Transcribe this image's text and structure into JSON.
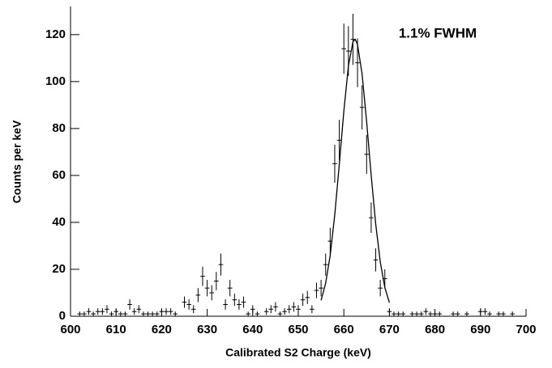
{
  "chart_data": {
    "type": "errorbar",
    "annotation": "1.1% FWHM",
    "x_label": "Calibrated S2 Charge (keV)",
    "y_label": "Counts per keV",
    "color": "#000000",
    "x": [
      602,
      603,
      604,
      605,
      606,
      607,
      608,
      609,
      610,
      611,
      612,
      613,
      614,
      615,
      616,
      617,
      618,
      619,
      620,
      621,
      622,
      623,
      625,
      626,
      627,
      628,
      629,
      630,
      631,
      632,
      633,
      634,
      635,
      636,
      637,
      638,
      639,
      640,
      641,
      643,
      644,
      645,
      646,
      647,
      648,
      649,
      650,
      651,
      652,
      653,
      654,
      655,
      656,
      657,
      658,
      659,
      660,
      661,
      662,
      663,
      664,
      665,
      666,
      667,
      668,
      669,
      670,
      671,
      672,
      673,
      675,
      676,
      677,
      678,
      679,
      680,
      681,
      684,
      685,
      687,
      690,
      691,
      692,
      694,
      695,
      697
    ],
    "values": [
      1,
      1,
      2,
      1,
      2,
      2,
      3,
      1,
      2,
      1,
      1,
      5,
      2,
      3,
      1,
      1,
      1,
      1,
      2,
      2,
      2,
      1,
      6,
      5,
      3,
      9,
      17,
      12,
      10,
      15,
      22,
      5,
      12,
      7,
      5,
      6,
      1,
      3,
      1,
      2,
      3,
      4,
      1,
      2,
      3,
      4,
      3,
      7,
      8,
      3,
      11,
      12,
      22,
      32,
      65,
      75,
      114,
      113,
      118,
      108,
      89,
      69,
      42,
      24,
      12,
      16,
      2,
      1,
      1,
      1,
      1,
      1,
      1,
      2,
      1,
      1,
      1,
      1,
      1,
      1,
      2,
      2,
      1,
      1,
      1,
      1
    ],
    "errors": [
      1,
      1,
      1.4,
      1,
      1.4,
      1.4,
      1.7,
      1,
      1.4,
      1,
      1,
      2.2,
      1.4,
      1.7,
      1,
      1,
      1,
      1,
      1.4,
      1.4,
      1.4,
      1,
      2.4,
      2.2,
      1.7,
      3,
      4.1,
      3.5,
      3.2,
      3.9,
      4.7,
      2.2,
      3.5,
      2.6,
      2.2,
      2.4,
      1,
      1.7,
      1,
      1.4,
      1.7,
      2,
      1,
      1.4,
      1.7,
      2,
      1.7,
      2.6,
      2.8,
      1.7,
      3.3,
      3.5,
      4.7,
      5.7,
      8.1,
      8.7,
      10.7,
      10.6,
      10.9,
      10.4,
      9.4,
      8.3,
      6.5,
      4.9,
      3.5,
      4,
      1.4,
      1,
      1,
      1,
      1,
      1,
      1,
      1.4,
      1,
      1,
      1,
      1,
      1,
      1,
      1.4,
      1.4,
      1,
      1,
      1,
      1
    ],
    "fit": {
      "x": [
        655,
        656,
        657,
        658,
        659,
        660,
        661,
        662,
        662.5,
        663,
        664,
        665,
        666,
        667,
        668,
        669,
        670
      ],
      "values": [
        6.8,
        14.0,
        25.9,
        43.1,
        64.7,
        87.4,
        106.6,
        117.0,
        118,
        115.8,
        103.3,
        83.0,
        60.1,
        39.2,
        23.1,
        12.2,
        5.8
      ]
    },
    "xlim": [
      600,
      700
    ],
    "ylim": [
      0,
      132
    ],
    "xticks": [
      600,
      610,
      620,
      630,
      640,
      650,
      660,
      670,
      680,
      690,
      700
    ],
    "yticks": [
      0,
      20,
      40,
      60,
      80,
      100,
      120
    ]
  }
}
